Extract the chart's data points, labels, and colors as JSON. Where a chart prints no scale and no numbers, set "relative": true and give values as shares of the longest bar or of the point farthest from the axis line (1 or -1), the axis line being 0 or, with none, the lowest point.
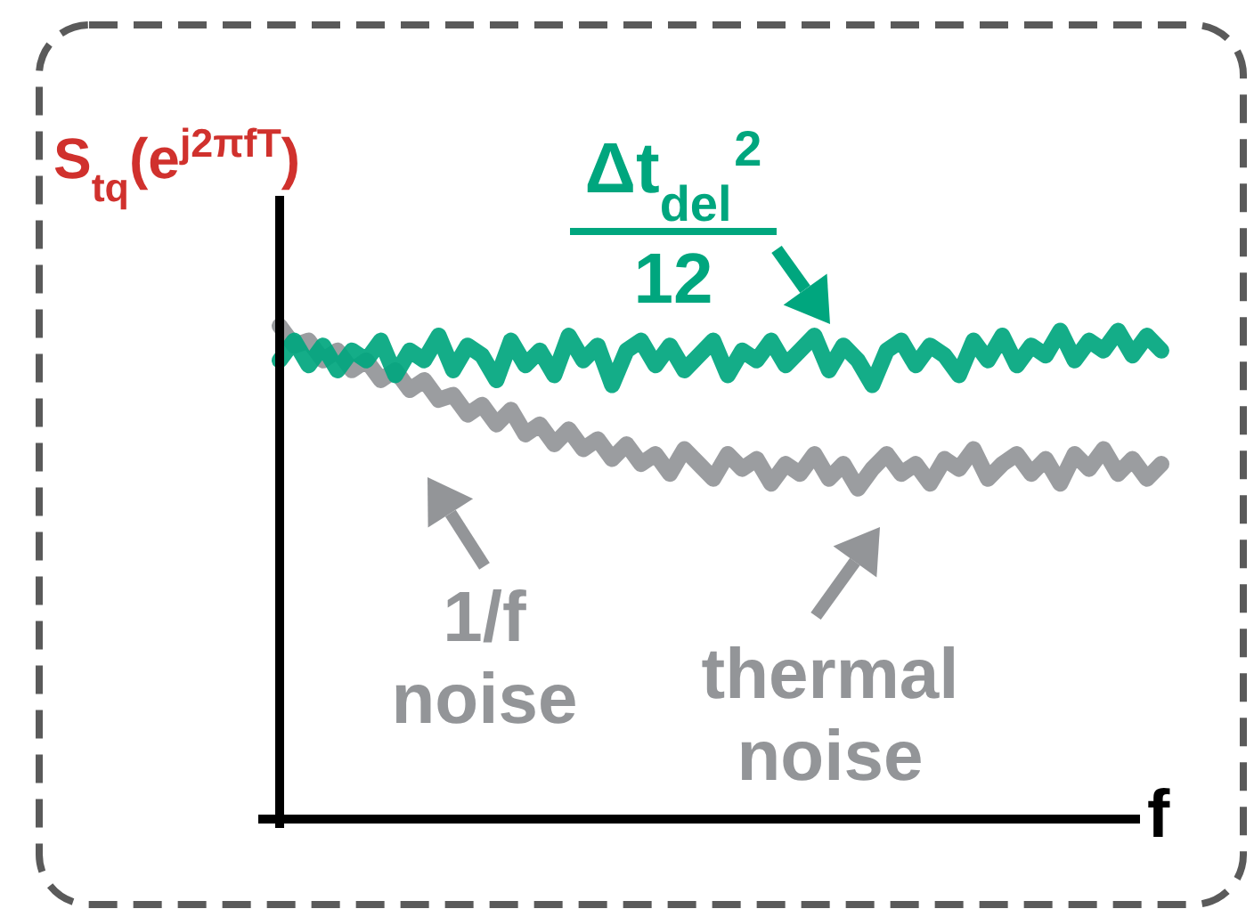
{
  "chart_data": {
    "type": "line",
    "relative": true,
    "xlabel": "f",
    "ylabel": "S$_{tq}$(e$^{j2πfT}$)",
    "categories": [
      null,
      null,
      null,
      null,
      null,
      null,
      null,
      null,
      null,
      null,
      null,
      null,
      null,
      null,
      null,
      null,
      null,
      null,
      null,
      null,
      null,
      null,
      null,
      null,
      null,
      null,
      null,
      null,
      null,
      null,
      null,
      null,
      null,
      null,
      null,
      null,
      null,
      null,
      null,
      null,
      null,
      null,
      null,
      null,
      null,
      null,
      null,
      null,
      null,
      null,
      null,
      null,
      null,
      null,
      null,
      null,
      null,
      null,
      null,
      null,
      null,
      null
    ],
    "series": [
      {
        "color": "#939598",
        "values": [
          1.0,
          0.96,
          0.97,
          0.93,
          0.95,
          0.91,
          0.93,
          0.89,
          0.91,
          0.87,
          0.89,
          0.85,
          0.86,
          0.82,
          0.84,
          0.8,
          0.83,
          0.78,
          0.8,
          0.76,
          0.79,
          0.75,
          0.77,
          0.73,
          0.76,
          0.72,
          0.74,
          0.7,
          0.75,
          0.72,
          0.69,
          0.74,
          0.71,
          0.73,
          0.68,
          0.72,
          0.7,
          0.74,
          0.69,
          0.72,
          0.67,
          0.71,
          0.74,
          0.7,
          0.72,
          0.68,
          0.73,
          0.71,
          0.75,
          0.69,
          0.72,
          0.74,
          0.7,
          0.73,
          0.68,
          0.74,
          0.71,
          0.75,
          0.7,
          0.73,
          0.69,
          0.72
        ]
      },
      {
        "color": "#00a67e",
        "values": [
          0.93,
          0.97,
          0.92,
          0.96,
          0.91,
          0.95,
          0.93,
          0.97,
          0.9,
          0.95,
          0.93,
          0.98,
          0.91,
          0.96,
          0.94,
          0.89,
          0.97,
          0.92,
          0.95,
          0.9,
          0.98,
          0.93,
          0.96,
          0.88,
          0.95,
          0.97,
          0.92,
          0.96,
          0.91,
          0.94,
          0.97,
          0.9,
          0.95,
          0.93,
          0.97,
          0.92,
          0.95,
          0.98,
          0.91,
          0.96,
          0.93,
          0.88,
          0.95,
          0.97,
          0.92,
          0.96,
          0.94,
          0.9,
          0.97,
          0.93,
          0.98,
          0.92,
          0.96,
          0.94,
          0.99,
          0.93,
          0.97,
          0.95,
          0.99,
          0.94,
          0.98,
          0.95
        ]
      }
    ],
    "annotations": [
      "Δt$_{del}$$^{2}$",
      "12",
      "1/f noise",
      "thermal noise"
    ]
  }
}
